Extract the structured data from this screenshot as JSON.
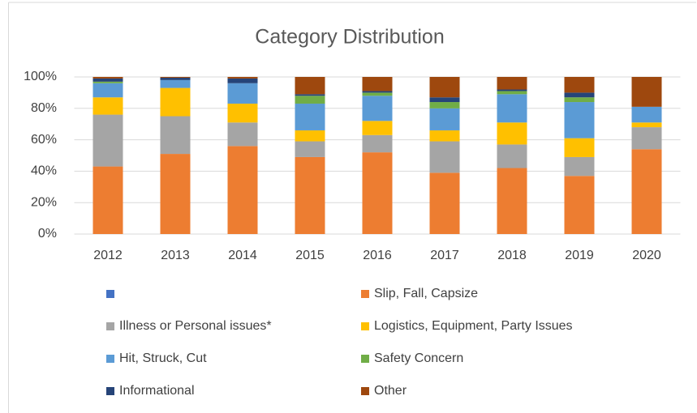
{
  "chart_data": {
    "type": "stacked_bar",
    "title": "Category Distribution",
    "categories": [
      "2012",
      "2013",
      "2014",
      "2015",
      "2016",
      "2017",
      "2018",
      "2019",
      "2020"
    ],
    "series": [
      {
        "name": null,
        "color": "#4472c4",
        "values": [
          0,
          0,
          0,
          0,
          0,
          0,
          0,
          0,
          0
        ]
      },
      {
        "name": "Slip, Fall, Capsize",
        "color": "#ed7d31",
        "values": [
          43,
          51,
          56,
          49,
          52,
          39,
          42,
          37,
          54
        ]
      },
      {
        "name": "Illness or Personal issues*",
        "color": "#a5a5a5",
        "values": [
          33,
          24,
          15,
          10,
          11,
          20,
          15,
          12,
          14
        ]
      },
      {
        "name": "Logistics, Equipment, Party Issues",
        "color": "#ffc000",
        "values": [
          11,
          18,
          12,
          7,
          9,
          7,
          14,
          12,
          3
        ]
      },
      {
        "name": "Hit, Struck, Cut",
        "color": "#5b9bd5",
        "values": [
          9,
          5,
          13,
          17,
          16,
          14,
          18,
          23,
          10
        ]
      },
      {
        "name": "Safety Concern",
        "color": "#70ad47",
        "values": [
          1,
          0,
          0,
          5,
          2,
          4,
          2,
          3,
          0
        ]
      },
      {
        "name": "Informational",
        "color": "#264478",
        "values": [
          2,
          1.5,
          3,
          1,
          1,
          3,
          1,
          3,
          0
        ]
      },
      {
        "name": "Other",
        "color": "#9e480e",
        "values": [
          1,
          0.5,
          1,
          11,
          9,
          13,
          8,
          10,
          19
        ]
      }
    ],
    "ylim": [
      0,
      100
    ],
    "yticks": [
      {
        "value": 0,
        "label": "0%"
      },
      {
        "value": 20,
        "label": "20%"
      },
      {
        "value": 40,
        "label": "40%"
      },
      {
        "value": 60,
        "label": "60%"
      },
      {
        "value": 80,
        "label": "80%"
      },
      {
        "value": 100,
        "label": "100%"
      }
    ],
    "grid": true
  }
}
